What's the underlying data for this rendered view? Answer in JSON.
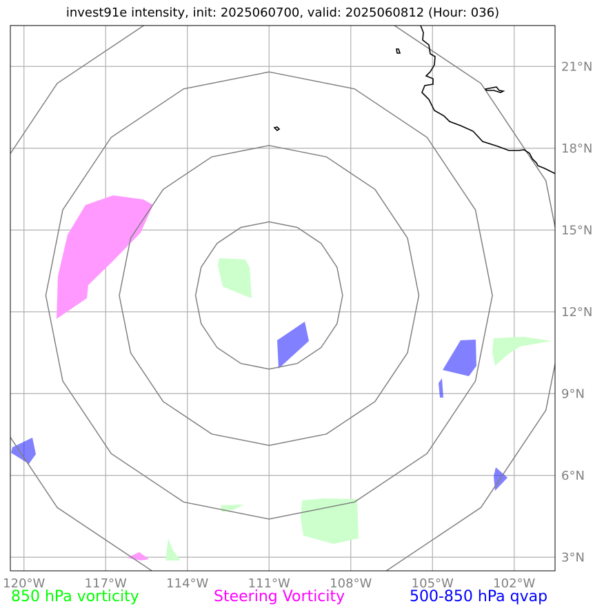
{
  "title": "invest91e intensity, init: 2025060700, valid: 2025060812 (Hour: 036)",
  "map": {
    "lon_range": [
      -120.5,
      -100.5
    ],
    "lat_range": [
      2.5,
      22.5
    ],
    "lon_ticks": [
      -120,
      -117,
      -114,
      -111,
      -108,
      -105,
      -102
    ],
    "lon_tick_labels": [
      "120°W",
      "117°W",
      "114°W",
      "111°W",
      "108°W",
      "105°W",
      "102°W"
    ],
    "lat_ticks": [
      3,
      6,
      9,
      12,
      15,
      18,
      21
    ],
    "lat_tick_labels": [
      "3°N",
      "6°N",
      "9°N",
      "12°N",
      "15°N",
      "18°N",
      "21°N"
    ],
    "grid": true,
    "center": [
      -111.0,
      12.6
    ],
    "range_rings_deg": [
      2.7,
      5.5,
      8.2,
      11.0
    ],
    "colors": {
      "grid": "#b0b0b0",
      "rings": "#808080",
      "coast": "#000000",
      "vort850": "#ccffcc",
      "steering": "#ff99ff",
      "qvap": "#3333ff"
    }
  },
  "legend": {
    "vort850": {
      "label": "850 hPa vorticity",
      "color": "#00ff00"
    },
    "steering": {
      "label": "Steering Vorticity",
      "color": "#ff00ff"
    },
    "qvap": {
      "label": "500-850 hPa qvap",
      "color": "#0000ff"
    }
  }
}
